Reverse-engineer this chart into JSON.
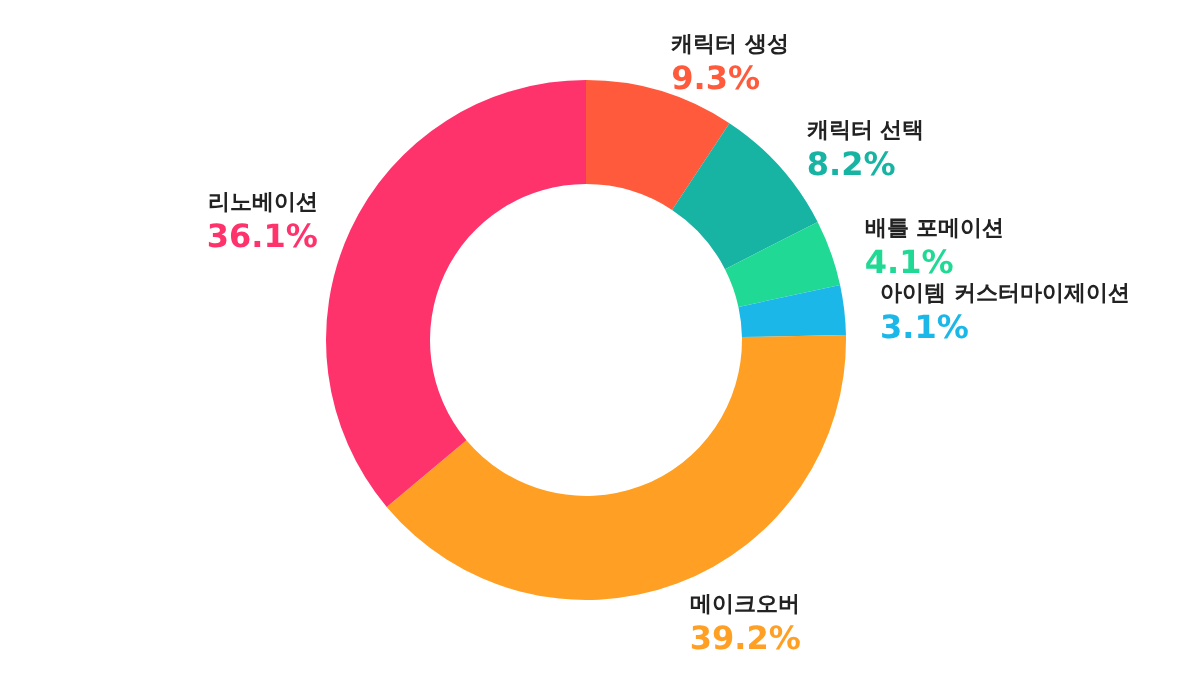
{
  "chart_data": {
    "type": "donut",
    "categories": [
      "캐릭터 생성",
      "캐릭터 선택",
      "배틀 포메이션",
      "아이템 커스터마이제이션",
      "메이크오버",
      "리노베이션"
    ],
    "values": [
      9.3,
      8.2,
      4.1,
      3.1,
      39.2,
      36.1
    ],
    "value_labels": [
      "9.3%",
      "8.2%",
      "4.1%",
      "3.1%",
      "39.2%",
      "36.1%"
    ],
    "colors": [
      "#ff5a3c",
      "#17b3a3",
      "#20d994",
      "#1bb7e8",
      "#ffa024",
      "#ff336b"
    ],
    "legend": false
  }
}
